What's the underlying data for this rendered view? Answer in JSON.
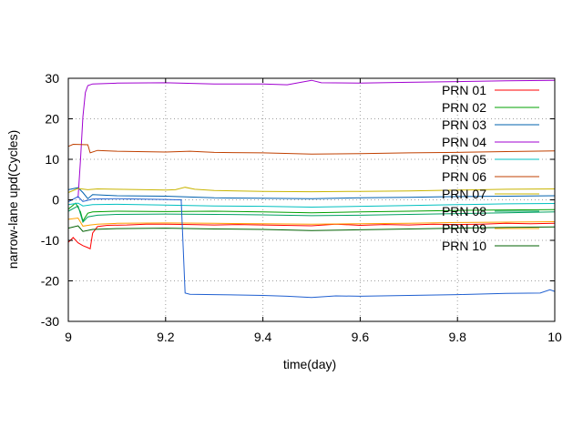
{
  "chart_data": {
    "type": "line",
    "xlabel": "time(day)",
    "ylabel": "narrow-lane upd(Cycles)",
    "xlim": [
      9,
      10
    ],
    "ylim": [
      -30,
      30
    ],
    "xticks": [
      9,
      9.2,
      9.4,
      9.6,
      9.8,
      10
    ],
    "yticks": [
      -30,
      -20,
      -10,
      0,
      10,
      20,
      30
    ],
    "grid": true,
    "legend_position": "top-right",
    "series": [
      {
        "name": "PRN 01",
        "color": "#ff0000",
        "points": [
          [
            9.0,
            -10.5
          ],
          [
            9.01,
            -9.3
          ],
          [
            9.02,
            -10.6
          ],
          [
            9.03,
            -11.3
          ],
          [
            9.04,
            -11.8
          ],
          [
            9.045,
            -12.1
          ],
          [
            9.05,
            -8.2
          ],
          [
            9.06,
            -6.6
          ],
          [
            9.08,
            -6.3
          ],
          [
            9.12,
            -6.2
          ],
          [
            9.16,
            -6.0
          ],
          [
            9.2,
            -6.0
          ],
          [
            9.25,
            -6.1
          ],
          [
            9.3,
            -6.2
          ],
          [
            9.35,
            -6.1
          ],
          [
            9.4,
            -6.2
          ],
          [
            9.5,
            -6.4
          ],
          [
            9.55,
            -6.0
          ],
          [
            9.6,
            -6.3
          ],
          [
            9.65,
            -6.1
          ],
          [
            9.7,
            -6.2
          ],
          [
            9.75,
            -6.0
          ],
          [
            9.8,
            -6.1
          ],
          [
            9.85,
            -6.0
          ],
          [
            9.9,
            -5.8
          ],
          [
            9.95,
            -5.9
          ],
          [
            10.0,
            -5.8
          ]
        ]
      },
      {
        "name": "PRN 02",
        "color": "#00a000",
        "points": [
          [
            9.0,
            -2.3
          ],
          [
            9.015,
            -0.8
          ],
          [
            9.025,
            -3.0
          ],
          [
            9.03,
            -5.2
          ],
          [
            9.04,
            -3.3
          ],
          [
            9.05,
            -3.0
          ],
          [
            9.1,
            -2.8
          ],
          [
            9.2,
            -2.9
          ],
          [
            9.3,
            -2.8
          ],
          [
            9.4,
            -3.0
          ],
          [
            9.5,
            -3.2
          ],
          [
            9.6,
            -3.0
          ],
          [
            9.7,
            -2.8
          ],
          [
            9.8,
            -2.6
          ],
          [
            9.9,
            -2.5
          ],
          [
            10.0,
            -2.4
          ]
        ]
      },
      {
        "name": "PRN 03",
        "color": "#0060ad",
        "points": [
          [
            9.0,
            2.5
          ],
          [
            9.02,
            3.0
          ],
          [
            9.03,
            1.8
          ],
          [
            9.04,
            0.3
          ],
          [
            9.05,
            1.3
          ],
          [
            9.1,
            1.0
          ],
          [
            9.2,
            0.9
          ],
          [
            9.3,
            0.5
          ],
          [
            9.4,
            0.4
          ],
          [
            9.5,
            0.3
          ],
          [
            9.6,
            0.5
          ],
          [
            9.7,
            0.6
          ],
          [
            9.8,
            0.8
          ],
          [
            9.9,
            0.9
          ],
          [
            10.0,
            1.0
          ]
        ]
      },
      {
        "name": "PRN 04",
        "color": "#a000d0",
        "points": [
          [
            9.02,
            0.5
          ],
          [
            9.025,
            10.0
          ],
          [
            9.03,
            20.5
          ],
          [
            9.035,
            26.5
          ],
          [
            9.04,
            28.2
          ],
          [
            9.05,
            28.6
          ],
          [
            9.1,
            28.8
          ],
          [
            9.2,
            28.9
          ],
          [
            9.3,
            28.6
          ],
          [
            9.4,
            28.6
          ],
          [
            9.45,
            28.4
          ],
          [
            9.5,
            29.5
          ],
          [
            9.52,
            28.9
          ],
          [
            9.6,
            28.8
          ],
          [
            9.7,
            29.0
          ],
          [
            9.8,
            29.2
          ],
          [
            9.9,
            29.4
          ],
          [
            10.0,
            29.5
          ]
        ]
      },
      {
        "name": "PRN 05",
        "color": "#00c0c0",
        "points": [
          [
            9.0,
            -1.2
          ],
          [
            9.02,
            -0.8
          ],
          [
            9.03,
            -1.5
          ],
          [
            9.05,
            -1.2
          ],
          [
            9.1,
            -1.1
          ],
          [
            9.2,
            -1.3
          ],
          [
            9.3,
            -1.5
          ],
          [
            9.4,
            -1.6
          ],
          [
            9.5,
            -1.8
          ],
          [
            9.6,
            -1.6
          ],
          [
            9.7,
            -1.4
          ],
          [
            9.8,
            -1.2
          ],
          [
            9.9,
            -1.0
          ],
          [
            10.0,
            -0.9
          ]
        ]
      },
      {
        "name": "PRN 06",
        "color": "#c04000",
        "points": [
          [
            9.0,
            13.2
          ],
          [
            9.01,
            13.7
          ],
          [
            9.04,
            13.6
          ],
          [
            9.045,
            11.6
          ],
          [
            9.06,
            12.2
          ],
          [
            9.1,
            12.0
          ],
          [
            9.2,
            11.8
          ],
          [
            9.25,
            12.0
          ],
          [
            9.3,
            11.7
          ],
          [
            9.4,
            11.6
          ],
          [
            9.5,
            11.3
          ],
          [
            9.6,
            11.4
          ],
          [
            9.7,
            11.6
          ],
          [
            9.8,
            11.7
          ],
          [
            9.9,
            11.9
          ],
          [
            10.0,
            12.1
          ]
        ]
      },
      {
        "name": "PRN 07",
        "color": "#c8b400",
        "points": [
          [
            9.0,
            1.8
          ],
          [
            9.02,
            2.8
          ],
          [
            9.04,
            2.5
          ],
          [
            9.06,
            2.7
          ],
          [
            9.1,
            2.6
          ],
          [
            9.2,
            2.4
          ],
          [
            9.22,
            2.5
          ],
          [
            9.24,
            3.1
          ],
          [
            9.26,
            2.6
          ],
          [
            9.3,
            2.3
          ],
          [
            9.4,
            2.1
          ],
          [
            9.5,
            2.0
          ],
          [
            9.6,
            2.1
          ],
          [
            9.7,
            2.2
          ],
          [
            9.8,
            2.4
          ],
          [
            9.9,
            2.6
          ],
          [
            10.0,
            2.7
          ]
        ]
      },
      {
        "name": "PRN 08",
        "color": "#00a060",
        "points": [
          [
            9.0,
            -2.8
          ],
          [
            9.02,
            -1.5
          ],
          [
            9.03,
            -5.5
          ],
          [
            9.04,
            -4.2
          ],
          [
            9.06,
            -3.8
          ],
          [
            9.1,
            -3.6
          ],
          [
            9.2,
            -3.5
          ],
          [
            9.3,
            -3.6
          ],
          [
            9.4,
            -3.7
          ],
          [
            9.5,
            -3.9
          ],
          [
            9.6,
            -3.8
          ],
          [
            9.7,
            -3.6
          ],
          [
            9.8,
            -3.4
          ],
          [
            9.9,
            -3.2
          ],
          [
            10.0,
            -3.0
          ]
        ]
      },
      {
        "name": "PRN 09",
        "color": "#ffa000",
        "points": [
          [
            9.0,
            -4.8
          ],
          [
            9.02,
            -4.5
          ],
          [
            9.03,
            -6.5
          ],
          [
            9.045,
            -6.2
          ],
          [
            9.06,
            -6.0
          ],
          [
            9.1,
            -5.8
          ],
          [
            9.2,
            -5.7
          ],
          [
            9.3,
            -5.8
          ],
          [
            9.4,
            -5.9
          ],
          [
            9.5,
            -6.0
          ],
          [
            9.6,
            -5.9
          ],
          [
            9.7,
            -5.8
          ],
          [
            9.8,
            -5.6
          ],
          [
            9.9,
            -5.5
          ],
          [
            10.0,
            -5.4
          ]
        ]
      },
      {
        "name": "PRN 10",
        "color": "#006000",
        "points": [
          [
            9.0,
            -7.0
          ],
          [
            9.02,
            -6.4
          ],
          [
            9.03,
            -7.8
          ],
          [
            9.05,
            -7.3
          ],
          [
            9.1,
            -7.1
          ],
          [
            9.2,
            -7.0
          ],
          [
            9.3,
            -7.2
          ],
          [
            9.4,
            -7.3
          ],
          [
            9.5,
            -7.6
          ],
          [
            9.6,
            -7.4
          ],
          [
            9.7,
            -7.2
          ],
          [
            9.8,
            -7.0
          ],
          [
            9.9,
            -6.8
          ],
          [
            10.0,
            -6.7
          ]
        ]
      },
      {
        "name": "",
        "color": "#1f5fd0",
        "points": [
          [
            9.0,
            -0.5
          ],
          [
            9.02,
            0.8
          ],
          [
            9.03,
            -0.4
          ],
          [
            9.05,
            0.2
          ],
          [
            9.1,
            0.3
          ],
          [
            9.2,
            0.1
          ],
          [
            9.232,
            0.0
          ],
          [
            9.24,
            -23.0
          ],
          [
            9.25,
            -23.3
          ],
          [
            9.3,
            -23.4
          ],
          [
            9.4,
            -23.6
          ],
          [
            9.45,
            -23.8
          ],
          [
            9.5,
            -24.1
          ],
          [
            9.55,
            -23.7
          ],
          [
            9.6,
            -23.8
          ],
          [
            9.7,
            -23.6
          ],
          [
            9.8,
            -23.4
          ],
          [
            9.9,
            -23.1
          ],
          [
            9.97,
            -23.0
          ],
          [
            9.99,
            -22.2
          ],
          [
            10.0,
            -22.6
          ]
        ]
      }
    ]
  }
}
